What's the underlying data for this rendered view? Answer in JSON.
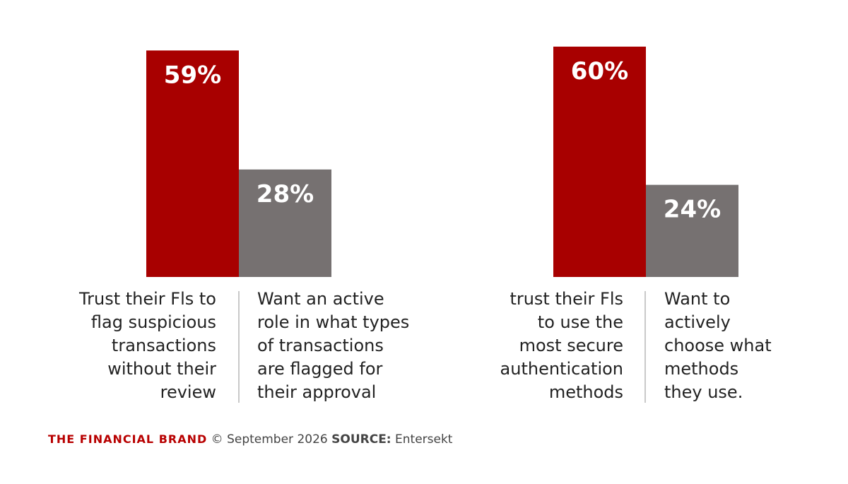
{
  "chart_data": [
    {
      "type": "bar",
      "categories": [
        "Trust their Fls to flag suspicious transactions without their review",
        "Want an active role in what types of transactions are flagged for their approval"
      ],
      "values": [
        59,
        28
      ],
      "value_labels": [
        "59%",
        "28%"
      ],
      "colors": [
        "#a80000",
        "#767171"
      ],
      "ylim": [
        0,
        60
      ],
      "grid": false
    },
    {
      "type": "bar",
      "categories": [
        "trust their Fls to use the most secure authentication methods",
        "Want to actively choose what methods they use."
      ],
      "values": [
        60,
        24
      ],
      "value_labels": [
        "60%",
        "24%"
      ],
      "colors": [
        "#a80000",
        "#767171"
      ],
      "ylim": [
        0,
        60
      ],
      "grid": false
    }
  ],
  "captions": {
    "group1_left": "Trust their Fls to\nflag suspicious\ntransactions\nwithout their\nreview",
    "group1_right": "Want an active\nrole in what types\nof transactions\nare flagged for\ntheir approval",
    "group2_left": "trust their Fls\nto use the\nmost secure\nauthentication\nmethods",
    "group2_right": "Want to\nactively\nchoose what\nmethods\nthey use."
  },
  "footer": {
    "brand": "THE FINANCIAL BRAND",
    "copyright": "© September 2026",
    "source_label": "SOURCE:",
    "source_value": "Entersekt"
  }
}
